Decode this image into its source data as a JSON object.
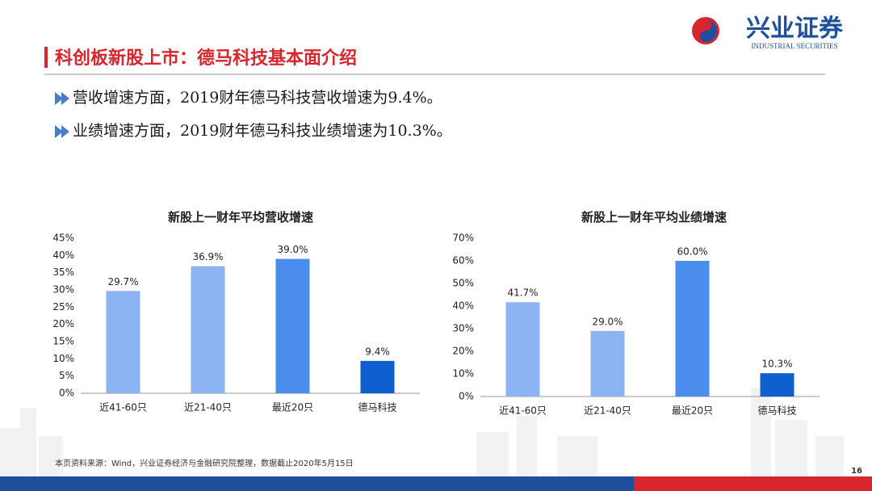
{
  "header": {
    "title": "科创板新股上市：德马科技基本面介绍",
    "logo_name": "兴业证券",
    "logo_sub": "INDUSTRIAL SECURITIES"
  },
  "bullets": [
    "营收增速方面，2019财年德马科技营收增速为9.4%。",
    "业绩增速方面，2019财年德马科技业绩增速为10.3%。"
  ],
  "footer": {
    "source": "本页资料来源：Wind，兴业证券经济与金融研究院整理，数据截止2020年5月15日",
    "page": "16"
  },
  "chart_data": [
    {
      "type": "bar",
      "title": "新股上一财年平均营收增速",
      "categories": [
        "近41-60只",
        "近21-40只",
        "最近20只",
        "德马科技"
      ],
      "values": [
        29.7,
        36.9,
        39.0,
        9.4
      ],
      "value_labels": [
        "29.7%",
        "36.9%",
        "39.0%",
        "9.4%"
      ],
      "colors": [
        "#8cb4f2",
        "#8cb4f2",
        "#4a8ded",
        "#0f5fcf"
      ],
      "ylim": [
        0,
        45
      ],
      "yticks": [
        {
          "value": 0,
          "label": "0%"
        },
        {
          "value": 5,
          "label": "5%"
        },
        {
          "value": 10,
          "label": "10%"
        },
        {
          "value": 15,
          "label": "15%"
        },
        {
          "value": 20,
          "label": "20%"
        },
        {
          "value": 25,
          "label": "25%"
        },
        {
          "value": 30,
          "label": "30%"
        },
        {
          "value": 35,
          "label": "35%"
        },
        {
          "value": 40,
          "label": "40%"
        },
        {
          "value": 45,
          "label": "45%"
        }
      ]
    },
    {
      "type": "bar",
      "title": "新股上一财年平均业绩增速",
      "categories": [
        "近41-60只",
        "近21-40只",
        "最近20只",
        "德马科技"
      ],
      "values": [
        41.7,
        29.0,
        60.0,
        10.3
      ],
      "value_labels": [
        "41.7%",
        "29.0%",
        "60.0%",
        "10.3%"
      ],
      "colors": [
        "#8cb4f2",
        "#8cb4f2",
        "#4a8ded",
        "#0f5fcf"
      ],
      "ylim": [
        0,
        70
      ],
      "yticks": [
        {
          "value": 0,
          "label": "0%"
        },
        {
          "value": 10,
          "label": "10%"
        },
        {
          "value": 20,
          "label": "20%"
        },
        {
          "value": 30,
          "label": "30%"
        },
        {
          "value": 40,
          "label": "40%"
        },
        {
          "value": 50,
          "label": "50%"
        },
        {
          "value": 60,
          "label": "60%"
        },
        {
          "value": 70,
          "label": "70%"
        }
      ]
    }
  ]
}
